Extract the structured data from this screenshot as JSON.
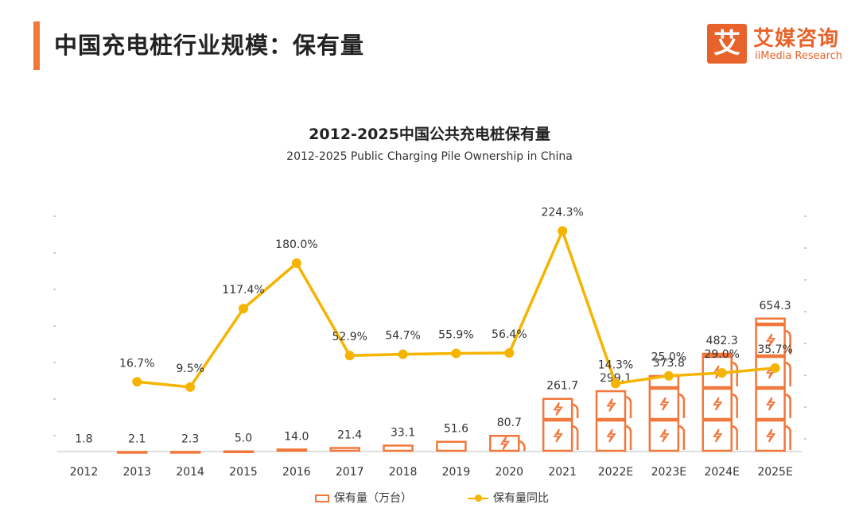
{
  "header": {
    "title": "中国充电桩行业规模：保有量"
  },
  "logo": {
    "mark": "艾",
    "cn": "艾媒咨询",
    "en": "iiMedia Research"
  },
  "colors": {
    "accent": "#F2773B",
    "bar": "#F2773B",
    "line": "#F5B400",
    "logo": "#E8632B"
  },
  "chart_data": {
    "type": "bar",
    "title": "2012-2025中国公共充电桩保有量",
    "subtitle": "2012-2025 Public Charging Pile Ownership in China",
    "categories": [
      "2012",
      "2013",
      "2014",
      "2015",
      "2016",
      "2017",
      "2018",
      "2019",
      "2020",
      "2021",
      "2022E",
      "2023E",
      "2024E",
      "2025E"
    ],
    "series": [
      {
        "name": "保有量（万台）",
        "type": "bar",
        "values": [
          1.8,
          2.1,
          2.3,
          5.0,
          14.0,
          21.4,
          33.1,
          51.6,
          80.7,
          261.7,
          299.1,
          373.8,
          482.3,
          654.3
        ],
        "labels": [
          "1.8",
          "2.1",
          "2.3",
          "5.0",
          "14.0",
          "21.4",
          "33.1",
          "51.6",
          "80.7",
          "261.7",
          "299.1",
          "373.8",
          "482.3",
          "654.3"
        ]
      },
      {
        "name": "保有量同比",
        "type": "line",
        "values": [
          null,
          16.7,
          9.5,
          117.4,
          180.0,
          52.9,
          54.7,
          55.9,
          56.4,
          224.3,
          14.3,
          25.0,
          29.0,
          35.7
        ],
        "labels": [
          "",
          "16.7%",
          "9.5%",
          "117.4%",
          "180.0%",
          "52.9%",
          "54.7%",
          "55.9%",
          "56.4%",
          "224.3%",
          "14.3%",
          "25.0%",
          "29.0%",
          "35.7%"
        ]
      }
    ],
    "ylim_bar": [
      0,
      700
    ],
    "ylim_line": [
      -100,
      250
    ],
    "legend_position": "bottom-center"
  }
}
